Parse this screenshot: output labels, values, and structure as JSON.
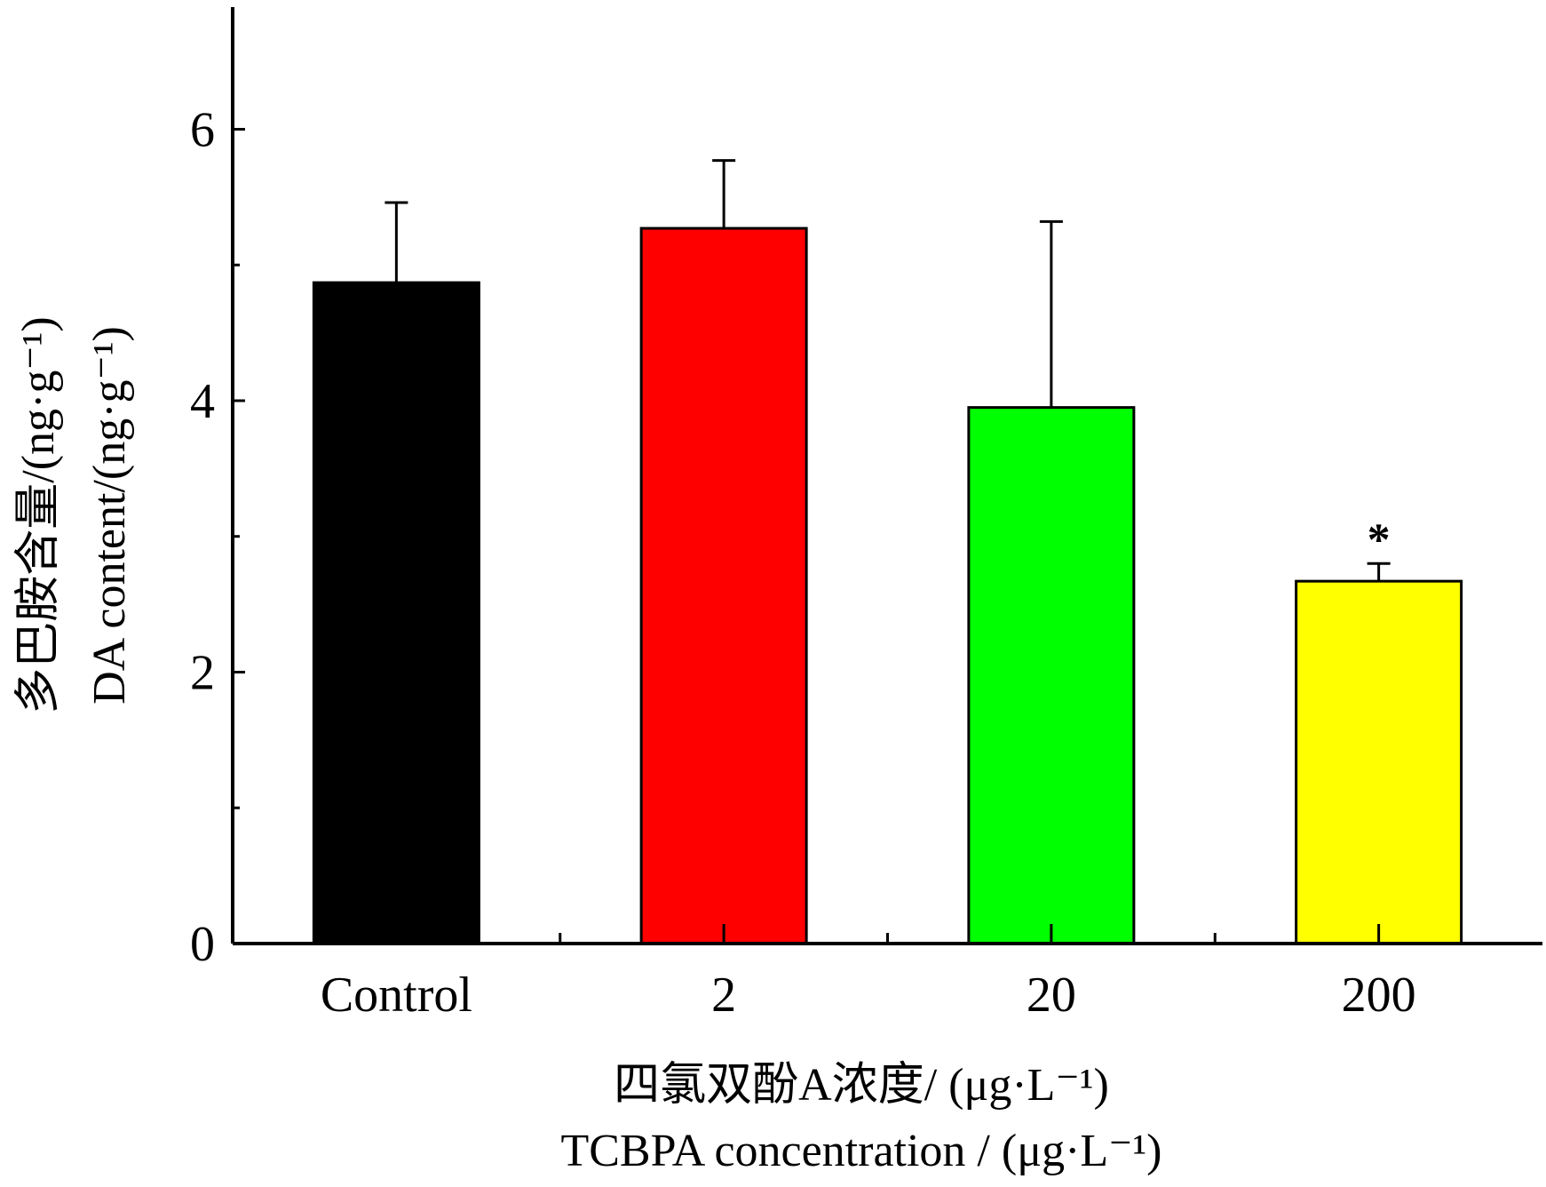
{
  "chart_data": {
    "type": "bar",
    "categories": [
      "Control",
      "2",
      "20",
      "200"
    ],
    "values": [
      4.87,
      5.27,
      3.95,
      2.67
    ],
    "errors": [
      0.59,
      0.5,
      1.37,
      0.13
    ],
    "significance": [
      "",
      "",
      "",
      "*"
    ],
    "bar_colors": [
      "#000000",
      "#ff0000",
      "#00ff00",
      "#ffff00"
    ],
    "ylim": [
      0,
      6.9
    ],
    "yticks": [
      0,
      2,
      4,
      6
    ],
    "ytick_labels": [
      "0",
      "2",
      "4",
      "6"
    ],
    "yminor_ticks": [
      1,
      3,
      5
    ],
    "ylabel_cn": "多巴胺含量/(ng·g⁻¹)",
    "ylabel_en": "DA content/(ng·g⁻¹)",
    "xlabel_cn": "四氯双酚A浓度/ (μg·L⁻¹)",
    "xlabel_en": "TCBPA concentration / (μg·L⁻¹)",
    "title": "",
    "grid": false,
    "legend": "none"
  }
}
